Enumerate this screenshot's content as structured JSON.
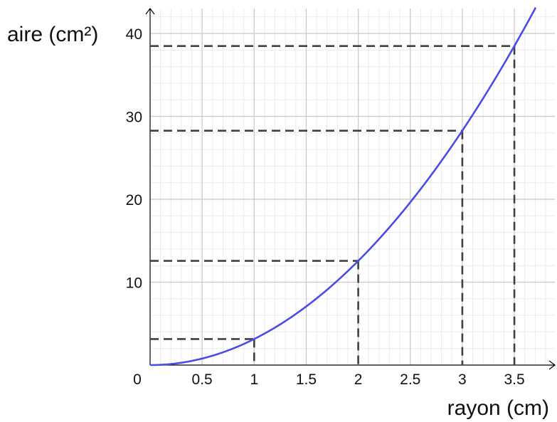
{
  "chart_data": {
    "type": "line",
    "xlabel": "rayon (cm)",
    "ylabel": "aire (cm²)",
    "xlim": [
      0,
      3.9
    ],
    "ylim": [
      0,
      43
    ],
    "x_ticks": [
      0.5,
      1,
      1.5,
      2,
      2.5,
      3,
      3.5
    ],
    "x_tick_labels": [
      "0.5",
      "1",
      "1.5",
      "2",
      "2.5",
      "3",
      "3.5"
    ],
    "y_ticks": [
      10,
      20,
      30,
      40
    ],
    "y_tick_labels": [
      "10",
      "20",
      "30",
      "40"
    ],
    "origin_label": "0",
    "grid": true,
    "minor_grid_step": {
      "x": 0.1,
      "y": 2
    },
    "series": [
      {
        "function": "pi * x^2",
        "x_range": [
          0,
          3.9
        ],
        "color": "#4b4be8"
      }
    ],
    "guides": [
      {
        "x": 1,
        "y": 3.14
      },
      {
        "x": 2,
        "y": 12.57
      },
      {
        "x": 3,
        "y": 28.27
      },
      {
        "x": 3.5,
        "y": 38.48
      }
    ],
    "colors": {
      "curve": "#4b4be8",
      "guide": "#404040",
      "major_grid": "#c8c8c8",
      "minor_grid": "#ececec",
      "axis": "#000000"
    }
  }
}
